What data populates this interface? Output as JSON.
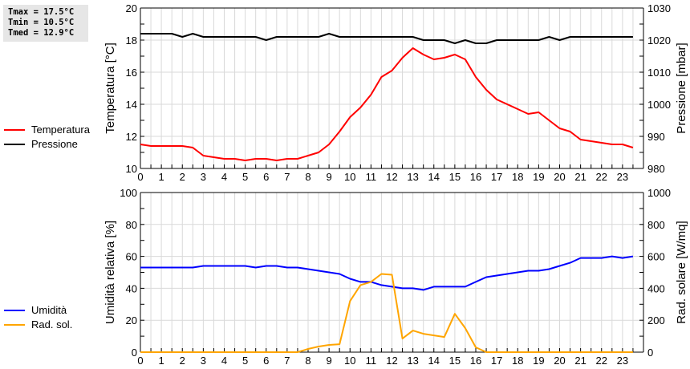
{
  "stats": {
    "tmax": "Tmax = 17.5°C",
    "tmin": "Tmin = 10.5°C",
    "tmed": "Tmed = 12.9°C"
  },
  "legend": {
    "top": [
      {
        "label": "Temperatura",
        "color": "#ff0000"
      },
      {
        "label": "Pressione",
        "color": "#000000"
      }
    ],
    "bottom": [
      {
        "label": "Umidità",
        "color": "#0000ff"
      },
      {
        "label": "Rad. sol.",
        "color": "#ffa500"
      }
    ]
  },
  "chart_data": [
    {
      "type": "line",
      "title": "",
      "xlabel": "",
      "x_ticks": [
        "0",
        "1",
        "2",
        "3",
        "4",
        "5",
        "6",
        "7",
        "8",
        "9",
        "10",
        "11",
        "12",
        "13",
        "14",
        "15",
        "16",
        "17",
        "18",
        "19",
        "20",
        "21",
        "22",
        "23"
      ],
      "x": [
        0,
        0.5,
        1,
        1.5,
        2,
        2.5,
        3,
        3.5,
        4,
        4.5,
        5,
        5.5,
        6,
        6.5,
        7,
        7.5,
        8,
        8.5,
        9,
        9.5,
        10,
        10.5,
        11,
        11.5,
        12,
        12.5,
        13,
        13.5,
        14,
        14.5,
        15,
        15.5,
        16,
        16.5,
        17,
        17.5,
        18,
        18.5,
        19,
        19.5,
        20,
        20.5,
        21,
        21.5,
        22,
        22.5,
        23,
        23.5
      ],
      "xlim": [
        0,
        24
      ],
      "ylabel": "Temperatura [°C]",
      "ylim": [
        10,
        20
      ],
      "y_ticks": [
        "10",
        "12",
        "14",
        "16",
        "18",
        "20"
      ],
      "y2label": "Pressione [mbar]",
      "y2lim": [
        980,
        1030
      ],
      "y2_ticks": [
        "980",
        "990",
        "1000",
        "1010",
        "1020",
        "1030"
      ],
      "grid": true,
      "legend_position": "left-outside",
      "series": [
        {
          "name": "Temperatura",
          "axis": "left",
          "color": "#ff0000",
          "values": [
            11.5,
            11.4,
            11.4,
            11.4,
            11.4,
            11.3,
            10.8,
            10.7,
            10.6,
            10.6,
            10.5,
            10.6,
            10.6,
            10.5,
            10.6,
            10.6,
            10.8,
            11.0,
            11.5,
            12.3,
            13.2,
            13.8,
            14.6,
            15.7,
            16.1,
            16.9,
            17.5,
            17.1,
            16.8,
            16.9,
            17.1,
            16.8,
            15.7,
            14.9,
            14.3,
            14.0,
            13.7,
            13.4,
            13.5,
            13.0,
            12.5,
            12.3,
            11.8,
            11.7,
            11.6,
            11.5,
            11.5,
            11.3
          ]
        },
        {
          "name": "Pressione",
          "axis": "right",
          "color": "#000000",
          "values": [
            1022,
            1022,
            1022,
            1022,
            1021,
            1022,
            1021,
            1021,
            1021,
            1021,
            1021,
            1021,
            1020,
            1021,
            1021,
            1021,
            1021,
            1021,
            1022,
            1021,
            1021,
            1021,
            1021,
            1021,
            1021,
            1021,
            1021,
            1020,
            1020,
            1020,
            1019,
            1020,
            1019,
            1019,
            1020,
            1020,
            1020,
            1020,
            1020,
            1021,
            1020,
            1021,
            1021,
            1021,
            1021,
            1021,
            1021,
            1021
          ]
        }
      ]
    },
    {
      "type": "line",
      "title": "",
      "xlabel": "",
      "x_ticks": [
        "0",
        "1",
        "2",
        "3",
        "4",
        "5",
        "6",
        "7",
        "8",
        "9",
        "10",
        "11",
        "12",
        "13",
        "14",
        "15",
        "16",
        "17",
        "18",
        "19",
        "20",
        "21",
        "22",
        "23"
      ],
      "x": [
        0,
        0.5,
        1,
        1.5,
        2,
        2.5,
        3,
        3.5,
        4,
        4.5,
        5,
        5.5,
        6,
        6.5,
        7,
        7.5,
        8,
        8.5,
        9,
        9.5,
        10,
        10.5,
        11,
        11.5,
        12,
        12.5,
        13,
        13.5,
        14,
        14.5,
        15,
        15.5,
        16,
        16.5,
        17,
        17.5,
        18,
        18.5,
        19,
        19.5,
        20,
        20.5,
        21,
        21.5,
        22,
        22.5,
        23,
        23.5
      ],
      "xlim": [
        0,
        24
      ],
      "ylabel": "Umidità relativa [%]",
      "ylim": [
        0,
        100
      ],
      "y_ticks": [
        "0",
        "20",
        "40",
        "60",
        "80",
        "100"
      ],
      "y2label": "Rad. solare [W/mq]",
      "y2lim": [
        0,
        1000
      ],
      "y2_ticks": [
        "0",
        "200",
        "400",
        "600",
        "800",
        "1000"
      ],
      "grid": true,
      "legend_position": "left-outside",
      "series": [
        {
          "name": "Umidità",
          "axis": "left",
          "color": "#0000ff",
          "values": [
            53,
            53,
            53,
            53,
            53,
            53,
            54,
            54,
            54,
            54,
            54,
            53,
            54,
            54,
            53,
            53,
            52,
            51,
            50,
            49,
            46,
            44,
            44,
            42,
            41,
            40,
            40,
            39,
            41,
            41,
            41,
            41,
            44,
            47,
            48,
            49,
            50,
            51,
            51,
            52,
            54,
            56,
            59,
            59,
            59,
            60,
            59,
            60
          ]
        },
        {
          "name": "Rad. sol.",
          "axis": "right",
          "color": "#ffa500",
          "values": [
            0,
            0,
            0,
            0,
            0,
            0,
            0,
            0,
            0,
            0,
            0,
            0,
            0,
            0,
            0,
            0,
            20,
            35,
            45,
            50,
            320,
            420,
            440,
            490,
            485,
            85,
            135,
            115,
            105,
            95,
            240,
            150,
            30,
            0,
            0,
            0,
            0,
            0,
            0,
            0,
            0,
            0,
            0,
            0,
            0,
            0,
            0,
            0
          ]
        }
      ]
    }
  ]
}
